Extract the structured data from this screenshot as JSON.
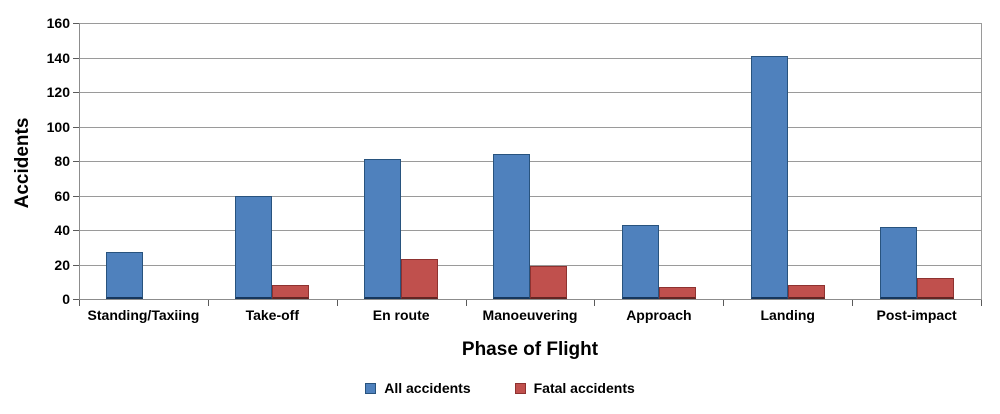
{
  "chart_data": {
    "type": "bar",
    "title": "",
    "categories": [
      "Standing/Taxiing",
      "Take-off",
      "En route",
      "Manoeuvering",
      "Approach",
      "Landing",
      "Post-impact"
    ],
    "series": [
      {
        "name": "All accidents",
        "color": "#4F81BD",
        "border": "#28537E",
        "border_bottom": "#16365C",
        "values": [
          27,
          60,
          81,
          84,
          43,
          141,
          42
        ]
      },
      {
        "name": "Fatal accidents",
        "color": "#C0504D",
        "border": "#8E3230",
        "border_bottom": "#632523",
        "values": [
          0,
          8,
          23,
          19,
          7,
          8,
          12
        ]
      }
    ],
    "xlabel": "Phase of Flight",
    "ylabel": "Accidents",
    "ylim": [
      0,
      160
    ],
    "yticks": [
      0,
      20,
      40,
      60,
      80,
      100,
      120,
      140,
      160
    ],
    "grid": true,
    "legend_position": "bottom",
    "colors": {
      "gridline": "#9a9a9a",
      "axis": "#8c8c8c",
      "tick": "#5a5a5a",
      "text": "#000000",
      "background": "#ffffff"
    }
  }
}
